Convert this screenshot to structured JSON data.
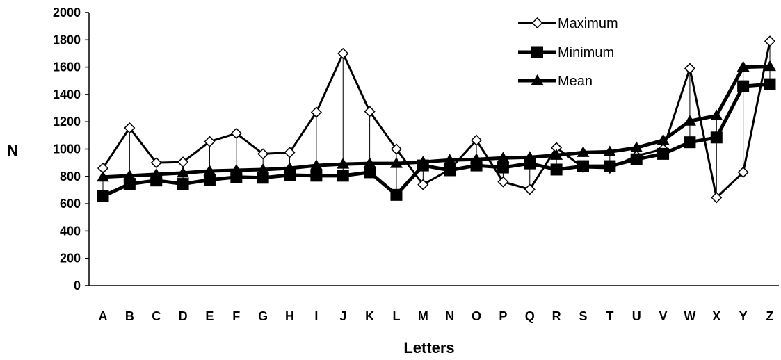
{
  "chart_data": {
    "type": "line",
    "categories": [
      "A",
      "B",
      "C",
      "D",
      "E",
      "F",
      "G",
      "H",
      "I",
      "J",
      "K",
      "L",
      "M",
      "N",
      "O",
      "P",
      "Q",
      "R",
      "S",
      "T",
      "U",
      "V",
      "W",
      "X",
      "Y",
      "Z"
    ],
    "series": [
      {
        "name": "Maximum",
        "marker": "diamond-open",
        "values": [
          860,
          1155,
          900,
          905,
          1055,
          1115,
          965,
          975,
          1270,
          1700,
          1275,
          1000,
          740,
          850,
          1065,
          760,
          705,
          1010,
          865,
          860,
          950,
          1000,
          1590,
          645,
          830,
          1790
        ]
      },
      {
        "name": "Minimum",
        "marker": "square-filled",
        "values": [
          655,
          745,
          770,
          745,
          775,
          795,
          790,
          810,
          805,
          805,
          830,
          665,
          880,
          845,
          880,
          865,
          895,
          850,
          875,
          875,
          925,
          965,
          1050,
          1085,
          1460,
          1475
        ]
      },
      {
        "name": "Mean",
        "marker": "triangle-filled",
        "values": [
          795,
          805,
          815,
          825,
          840,
          845,
          850,
          860,
          880,
          890,
          895,
          895,
          905,
          920,
          925,
          935,
          940,
          955,
          975,
          980,
          1010,
          1065,
          1205,
          1245,
          1600,
          1605
        ]
      }
    ],
    "show_high_low_lines": true,
    "xlabel": "Letters",
    "ylabel": "N",
    "ylim": [
      0,
      2000
    ],
    "yticks": [
      0,
      200,
      400,
      600,
      800,
      1000,
      1200,
      1400,
      1600,
      1800,
      2000
    ],
    "legend_position": "top-right",
    "grid": false,
    "colors": {
      "line": "#000000",
      "background": "#ffffff"
    }
  }
}
